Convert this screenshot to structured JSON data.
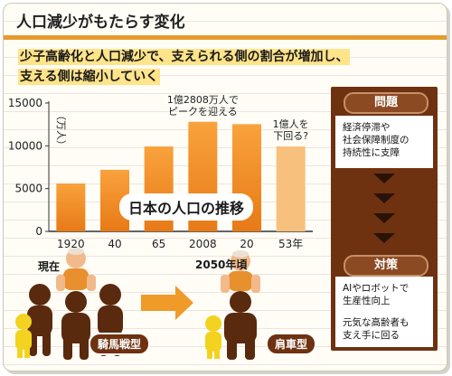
{
  "title": "人口減少がもたらす変化",
  "subtitle_lines": [
    "少子高齢化と人口減少で、支えられる側の割合が増加し、",
    "支える側は縮小していく"
  ],
  "chart_data": {
    "type": "bar",
    "title": "日本の人口の推移",
    "ylabel": "（万人）",
    "ylim": [
      0,
      15000
    ],
    "yticks": [
      0,
      5000,
      10000,
      15000
    ],
    "categories": [
      "1920",
      "40",
      "65",
      "2008",
      "20",
      "53年"
    ],
    "values": [
      5596,
      7193,
      9921,
      12808,
      12532,
      9924
    ],
    "projected": [
      false,
      false,
      false,
      false,
      false,
      true
    ],
    "annotations": [
      {
        "category": "2008",
        "text_lines": [
          "1億2808万人で",
          "ピークを迎える"
        ]
      },
      {
        "category": "53年",
        "text_lines": [
          "1億人を",
          "下回る?"
        ]
      }
    ],
    "colors": {
      "bar_top": "#f9a23c",
      "bar_bottom": "#e87a16",
      "projected_bar": "#f7c07c",
      "axis": "#333333"
    }
  },
  "panel": {
    "problem_title": "問題",
    "problem_text_lines": [
      "経済停滞や",
      "社会保障制度の",
      "持続性に支障"
    ],
    "measures_title": "対策",
    "measures_text1_lines": [
      "AIやロボットで",
      "生産性向上"
    ],
    "measures_text2_lines": [
      "元気な高齢者も",
      "支え手に回る"
    ]
  },
  "illustration": {
    "now_label": "現在",
    "future_label": "2050年頃",
    "kiba_label": "騎馬戦型",
    "kataguruma_label": "肩車型",
    "colors": {
      "adult": "#5a2a0e",
      "elder_skin": "#f2b98a",
      "elder_shirt": "#e8902d",
      "child": "#f3d31f",
      "arrow": "#f09a2a"
    }
  }
}
